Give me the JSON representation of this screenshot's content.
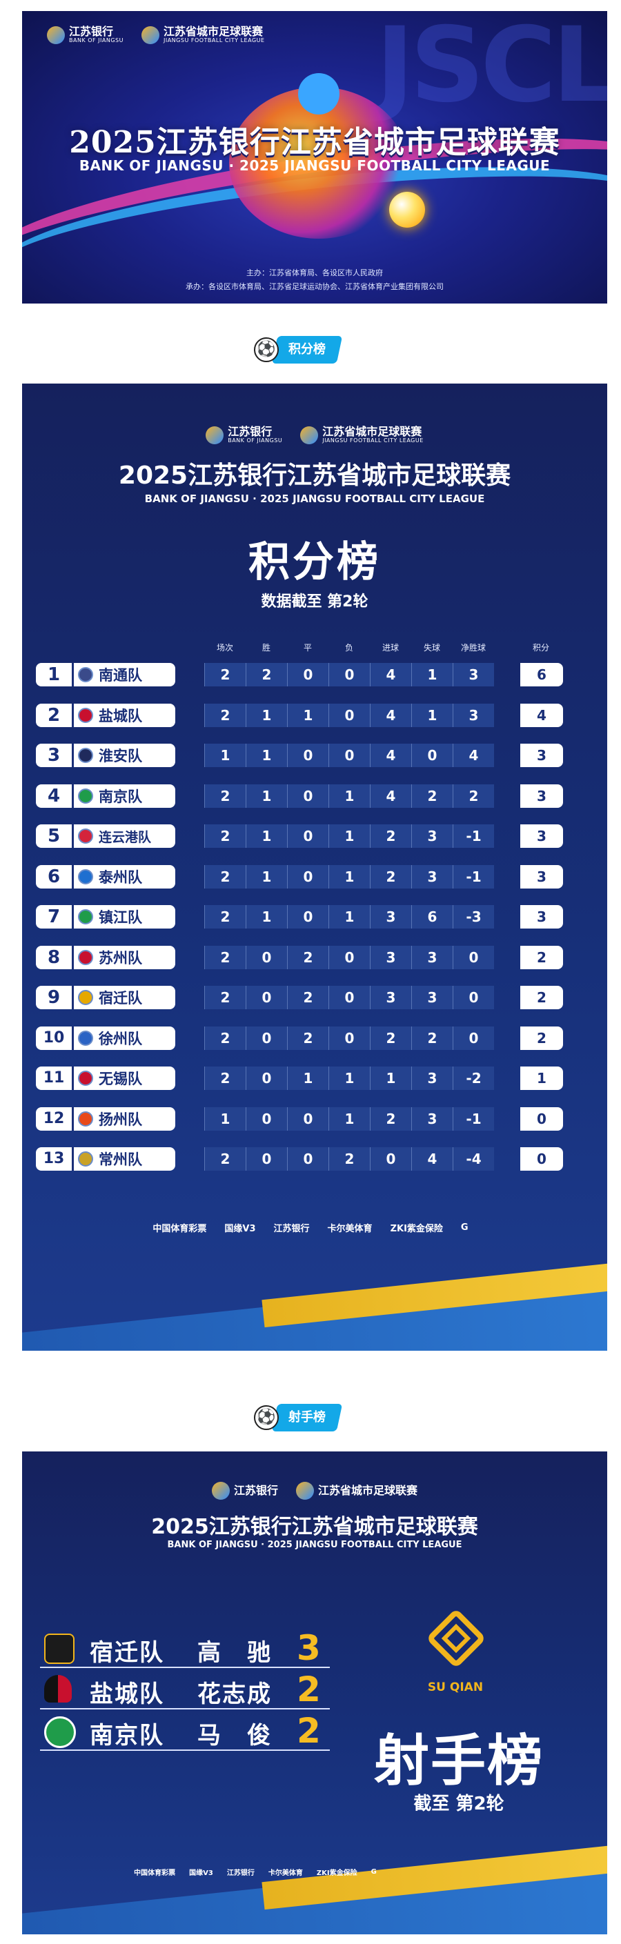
{
  "banner": {
    "watermark": "JSCL",
    "bank_logo": "江苏银行",
    "bank_logo_en": "BANK OF JIANGSU",
    "league_logo": "江苏省城市足球联赛",
    "league_logo_en": "JIANGSU FOOTBALL CITY LEAGUE",
    "title": "2025江苏银行江苏省城市足球联赛",
    "subtitle": "BANK OF JIANGSU · 2025 JIANGSU FOOTBALL CITY LEAGUE",
    "host_line1": "主办：江苏省体育局、各设区市人民政府",
    "host_line2": "承办：各设区市体育局、江苏省足球运动协会、江苏省体育产业集团有限公司"
  },
  "standings_chip": {
    "label": "积分榜"
  },
  "scorers_chip": {
    "label": "射手榜"
  },
  "standings": {
    "bank_logo": "江苏银行",
    "bank_logo_en": "BANK OF JIANGSU",
    "league_logo": "江苏省城市足球联赛",
    "league_logo_en": "JIANGSU FOOTBALL CITY LEAGUE",
    "title": "2025江苏银行江苏省城市足球联赛",
    "subtitle": "BANK OF JIANGSU · 2025 JIANGSU FOOTBALL CITY LEAGUE",
    "heading": "积分榜",
    "asof": "数据截至 第2轮",
    "columns": [
      "场次",
      "胜",
      "平",
      "负",
      "进球",
      "失球",
      "净胜球",
      "积分"
    ],
    "rows": [
      {
        "rank": "1",
        "team": "南通队",
        "played": "2",
        "won": "2",
        "draw": "0",
        "lost": "0",
        "gf": "4",
        "ga": "1",
        "gd": "3",
        "pts": "6"
      },
      {
        "rank": "2",
        "team": "盐城队",
        "played": "2",
        "won": "1",
        "draw": "1",
        "lost": "0",
        "gf": "4",
        "ga": "1",
        "gd": "3",
        "pts": "4"
      },
      {
        "rank": "3",
        "team": "淮安队",
        "played": "1",
        "won": "1",
        "draw": "0",
        "lost": "0",
        "gf": "4",
        "ga": "0",
        "gd": "4",
        "pts": "3"
      },
      {
        "rank": "4",
        "team": "南京队",
        "played": "2",
        "won": "1",
        "draw": "0",
        "lost": "1",
        "gf": "4",
        "ga": "2",
        "gd": "2",
        "pts": "3"
      },
      {
        "rank": "5",
        "team": "连云港队",
        "played": "2",
        "won": "1",
        "draw": "0",
        "lost": "1",
        "gf": "2",
        "ga": "3",
        "gd": "-1",
        "pts": "3"
      },
      {
        "rank": "6",
        "team": "泰州队",
        "played": "2",
        "won": "1",
        "draw": "0",
        "lost": "1",
        "gf": "2",
        "ga": "3",
        "gd": "-1",
        "pts": "3"
      },
      {
        "rank": "7",
        "team": "镇江队",
        "played": "2",
        "won": "1",
        "draw": "0",
        "lost": "1",
        "gf": "3",
        "ga": "6",
        "gd": "-3",
        "pts": "3"
      },
      {
        "rank": "8",
        "team": "苏州队",
        "played": "2",
        "won": "0",
        "draw": "2",
        "lost": "0",
        "gf": "3",
        "ga": "3",
        "gd": "0",
        "pts": "2"
      },
      {
        "rank": "9",
        "team": "宿迁队",
        "played": "2",
        "won": "0",
        "draw": "2",
        "lost": "0",
        "gf": "3",
        "ga": "3",
        "gd": "0",
        "pts": "2"
      },
      {
        "rank": "10",
        "team": "徐州队",
        "played": "2",
        "won": "0",
        "draw": "2",
        "lost": "0",
        "gf": "2",
        "ga": "2",
        "gd": "0",
        "pts": "2"
      },
      {
        "rank": "11",
        "team": "无锡队",
        "played": "2",
        "won": "0",
        "draw": "1",
        "lost": "1",
        "gf": "1",
        "ga": "3",
        "gd": "-2",
        "pts": "1"
      },
      {
        "rank": "12",
        "team": "扬州队",
        "played": "1",
        "won": "0",
        "draw": "0",
        "lost": "1",
        "gf": "2",
        "ga": "3",
        "gd": "-1",
        "pts": "0"
      },
      {
        "rank": "13",
        "team": "常州队",
        "played": "2",
        "won": "0",
        "draw": "0",
        "lost": "2",
        "gf": "0",
        "ga": "4",
        "gd": "-4",
        "pts": "0"
      }
    ],
    "sponsors": [
      "中国体育彩票",
      "国缘V3",
      "江苏银行",
      "卡尔美体育",
      "ZKI紫金保险",
      "G"
    ]
  },
  "scorers": {
    "bank_logo": "江苏银行",
    "league_logo": "江苏省城市足球联赛",
    "title": "2025江苏银行江苏省城市足球联赛",
    "subtitle": "BANK OF JIANGSU · 2025 JIANGSU FOOTBALL CITY LEAGUE",
    "list": [
      {
        "team": "宿迁队",
        "player": "高　驰",
        "goals": "3",
        "badge_label": "SU QIAN"
      },
      {
        "team": "盐城队",
        "player": "花志成",
        "goals": "2"
      },
      {
        "team": "南京队",
        "player": "马　俊",
        "goals": "2"
      }
    ],
    "featured_label": "SU QIAN",
    "heading": "射手榜",
    "asof": "截至 第2轮",
    "sponsors": [
      "中国体育彩票",
      "国缘V3",
      "江苏银行",
      "卡尔美体育",
      "ZKI紫金保险",
      "G"
    ]
  },
  "colors": {
    "navy": "#15215d",
    "accent_blue": "#13a8e8",
    "gold": "#f2b51c"
  }
}
